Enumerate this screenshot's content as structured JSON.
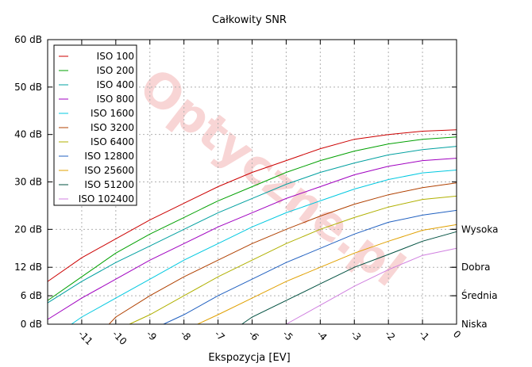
{
  "chart_data": {
    "type": "line",
    "title": "Całkowity SNR",
    "xlabel": "Ekspozycja [EV]",
    "ylabel": "",
    "xlim": [
      -12,
      0
    ],
    "ylim": [
      0,
      60
    ],
    "x_ticks": [
      -11,
      -10,
      -9,
      -8,
      -7,
      -6,
      -5,
      -4,
      -3,
      -2,
      -1,
      0
    ],
    "x_tick_labels": [
      "-11",
      "-10",
      "-9",
      "-8",
      "-7",
      "-6",
      "-5",
      "-4",
      "-3",
      "-2",
      "-1",
      "0"
    ],
    "y_ticks": [
      0,
      6,
      12,
      20,
      30,
      40,
      50,
      60
    ],
    "y_tick_labels": [
      "0 dB",
      "6 dB",
      "12 dB",
      "20 dB",
      "30 dB",
      "40 dB",
      "50 dB",
      "60 dB"
    ],
    "right_labels": [
      {
        "value": 20,
        "label": "Wysoka"
      },
      {
        "value": 12,
        "label": "Dobra"
      },
      {
        "value": 6,
        "label": "Średnia"
      },
      {
        "value": 0,
        "label": "Niska"
      }
    ],
    "grid": true,
    "legend_position": "top-left",
    "watermark": "Optyczne.pl",
    "series": [
      {
        "name": "ISO 100",
        "color": "#cc0000",
        "x": [
          -12,
          -11,
          -10,
          -9,
          -8,
          -7,
          -6,
          -5,
          -4,
          -3,
          -2,
          -1,
          0
        ],
        "y": [
          9,
          14,
          18,
          22,
          25.5,
          29,
          32,
          34.5,
          37,
          39,
          40,
          40.7,
          41
        ]
      },
      {
        "name": "ISO 200",
        "color": "#00a000",
        "x": [
          -12,
          -11,
          -10,
          -9,
          -8,
          -7,
          -6,
          -5,
          -4,
          -3,
          -2,
          -1,
          0
        ],
        "y": [
          5,
          10,
          15,
          19,
          22.5,
          26,
          29,
          32,
          34.5,
          36.5,
          38,
          39,
          39.5
        ]
      },
      {
        "name": "ISO 400",
        "color": "#00a0a0",
        "x": [
          -12,
          -11,
          -10,
          -9,
          -8,
          -7,
          -6,
          -5,
          -4,
          -3,
          -2,
          -1,
          0
        ],
        "y": [
          4.5,
          9,
          13,
          16.5,
          20,
          23.5,
          26.5,
          29.5,
          32,
          34,
          35.7,
          36.8,
          37.5
        ]
      },
      {
        "name": "ISO 800",
        "color": "#a000c0",
        "x": [
          -12,
          -11,
          -10,
          -9,
          -8,
          -7,
          -6,
          -5,
          -4,
          -3,
          -2,
          -1,
          0
        ],
        "y": [
          1,
          5.5,
          9.5,
          13.5,
          17,
          20.5,
          23.5,
          26.5,
          29,
          31.5,
          33.3,
          34.5,
          35
        ]
      },
      {
        "name": "ISO 1600",
        "color": "#00c8e0",
        "x": [
          -11.3,
          -11,
          -10,
          -9,
          -8,
          -7,
          -6,
          -5,
          -4,
          -3,
          -2,
          -1,
          0
        ],
        "y": [
          0,
          1.5,
          5.5,
          9.5,
          13.5,
          17,
          20.5,
          23.5,
          26,
          28.5,
          30.5,
          31.9,
          32.5
        ]
      },
      {
        "name": "ISO 3200",
        "color": "#b04000",
        "x": [
          -10.2,
          -10,
          -9,
          -8,
          -7,
          -6,
          -5,
          -4,
          -3,
          -2,
          -1,
          0
        ],
        "y": [
          0,
          1.5,
          6,
          10,
          13.5,
          17,
          20,
          22.8,
          25.3,
          27.3,
          28.8,
          29.8
        ]
      },
      {
        "name": "ISO 6400",
        "color": "#b0b000",
        "x": [
          -9.6,
          -9,
          -8,
          -7,
          -6,
          -5,
          -4,
          -3,
          -2,
          -1,
          0
        ],
        "y": [
          0,
          2,
          6,
          10,
          13.5,
          17,
          20,
          22.5,
          24.7,
          26.3,
          27
        ]
      },
      {
        "name": "ISO 12800",
        "color": "#2060c0",
        "x": [
          -8.6,
          -8,
          -7,
          -6,
          -5,
          -4,
          -3,
          -2,
          -1,
          0
        ],
        "y": [
          0,
          2,
          6,
          9.5,
          13,
          16,
          19,
          21.5,
          23,
          24
        ]
      },
      {
        "name": "ISO 25600",
        "color": "#e0a000",
        "x": [
          -7.6,
          -7,
          -6,
          -5,
          -4,
          -3,
          -2,
          -1,
          0
        ],
        "y": [
          0,
          2,
          5.5,
          9,
          12,
          15,
          17.5,
          19.8,
          21
        ]
      },
      {
        "name": "ISO 51200",
        "color": "#005040",
        "x": [
          -6.3,
          -6,
          -5,
          -4,
          -3,
          -2,
          -1,
          0
        ],
        "y": [
          0,
          1.5,
          5,
          8.5,
          12,
          14.7,
          17.5,
          19.5
        ]
      },
      {
        "name": "ISO 102400",
        "color": "#d080e0",
        "x": [
          -5,
          -4,
          -3,
          -2,
          -1,
          0
        ],
        "y": [
          0,
          4,
          8,
          11.5,
          14.5,
          16
        ]
      }
    ]
  }
}
